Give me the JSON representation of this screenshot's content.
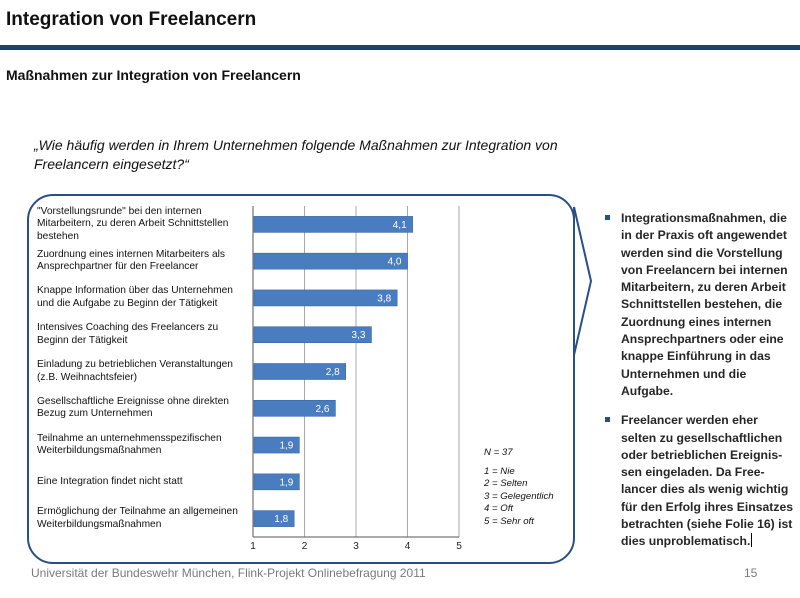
{
  "slide": {
    "title": "Integration von Freelancern",
    "subtitle": "Maßnahmen zur Integration von Freelancern",
    "question": "„Wie häufig werden in Ihrem Unternehmen folgende Maßnahmen zur Integration von Freelancern eingesetzt?“",
    "footer": "Universität der Bundeswehr München, Flink-Projekt Onlinebefragung  2011",
    "page_number": "15",
    "accent_color": "#2a4f86",
    "bar_color": "#4a7cc0"
  },
  "legend": {
    "n": "N = 37",
    "scale": [
      "1 = Nie",
      "2 = Selten",
      "3 = Gelegentlich",
      "4 = Oft",
      "5 = Sehr oft"
    ]
  },
  "chart_data": {
    "type": "bar",
    "orientation": "horizontal",
    "categories": [
      "\"Vorstellungsrunde\" bei den internen Mitarbeitern, zu deren Arbeit Schnittstellen bestehen",
      "Zuordnung eines internen Mitarbeiters als Ansprechpartner für den Freelancer",
      "Knappe Information über das Unternehmen und die Aufgabe zu Beginn der Tätigkeit",
      "Intensives Coaching des Freelancers zu Beginn der Tätigkeit",
      "Einladung zu betrieblichen Veranstaltungen (z.B. Weihnachtsfeier)",
      "Gesellschaftliche Ereignisse ohne direkten Bezug zum Unternehmen",
      "Teilnahme an unternehmensspezifischen Weiterbildungsmaßnahmen",
      "Eine Integration findet nicht statt",
      "Ermöglichung der Teilnahme an allgemeinen Weiterbildungsmaßnahmen"
    ],
    "values": [
      4.1,
      4.0,
      3.8,
      3.3,
      2.8,
      2.6,
      1.9,
      1.9,
      1.8
    ],
    "value_labels": [
      "4,1",
      "4,0",
      "3,8",
      "3,3",
      "2,8",
      "2,6",
      "1,9",
      "1,9",
      "1,8"
    ],
    "xlim": [
      1,
      5
    ],
    "xticks": [
      1,
      2,
      3,
      4,
      5
    ],
    "grid": true
  },
  "bullets": [
    "Integrationsmaßnahmen, die in der Praxis oft angewendet werden sind die Vorstellung von Freelancern bei internen Mitarbeitern, zu deren Arbeit Schnittstellen bestehen, die Zuordnung eines internen Ansprechpartners oder eine knappe Einführung in das Unternehmen und die Aufgabe.",
    "Freelancer werden eher selten zu gesellschaftlichen oder betrieblichen Ereignis-sen eingeladen. Da Free-lancer dies als wenig wichtig für den Erfolg ihres Einsatzes betrachten (siehe Folie 16) ist dies unproblematisch."
  ]
}
